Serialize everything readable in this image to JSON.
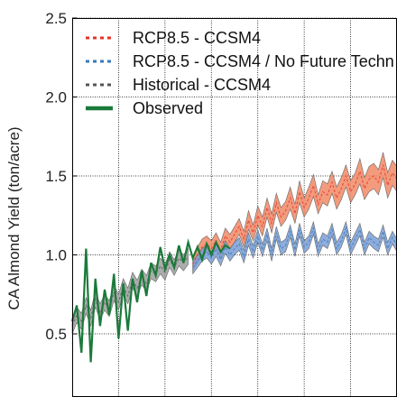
{
  "chart_data": {
    "type": "line",
    "title": "",
    "xlabel": "",
    "ylabel": "CA Almond Yield (ton/acre)",
    "ylim": [
      0.1,
      2.5
    ],
    "yticks": [
      "0.5",
      "1.0",
      "1.5",
      "2.0",
      "2.5"
    ],
    "yticks_values": [
      0.5,
      1.0,
      1.5,
      2.0,
      2.5
    ],
    "grid": true,
    "legend": "top-left",
    "series": [
      {
        "name": "RCP8.5 - CCSM4",
        "color": "#e8312a",
        "band_color": "#f08a66",
        "style": "dashed",
        "x": [
          2006,
          2007,
          2008,
          2009,
          2010,
          2011,
          2012,
          2013,
          2014,
          2015,
          2016,
          2017,
          2018,
          2019,
          2020,
          2021,
          2022,
          2023,
          2024,
          2025,
          2026,
          2027,
          2028,
          2029,
          2030,
          2031,
          2032,
          2033,
          2034,
          2035,
          2036,
          2037,
          2038,
          2039,
          2040,
          2041,
          2042,
          2043,
          2044,
          2045,
          2046,
          2047,
          2048,
          2049,
          2050
        ],
        "values": [
          0.94,
          1.0,
          1.05,
          1.07,
          1.04,
          1.09,
          1.03,
          1.12,
          1.08,
          1.13,
          1.18,
          1.1,
          1.22,
          1.14,
          1.25,
          1.18,
          1.3,
          1.2,
          1.33,
          1.24,
          1.28,
          1.36,
          1.26,
          1.4,
          1.3,
          1.36,
          1.44,
          1.32,
          1.4,
          1.38,
          1.46,
          1.36,
          1.42,
          1.5,
          1.4,
          1.45,
          1.53,
          1.42,
          1.48,
          1.5,
          1.46,
          1.57,
          1.44,
          1.52,
          1.48
        ],
        "lower": [
          0.9,
          0.95,
          1.0,
          1.02,
          0.99,
          1.04,
          0.98,
          1.07,
          1.03,
          1.08,
          1.13,
          1.05,
          1.16,
          1.09,
          1.19,
          1.12,
          1.24,
          1.14,
          1.27,
          1.18,
          1.22,
          1.29,
          1.2,
          1.33,
          1.24,
          1.29,
          1.37,
          1.26,
          1.33,
          1.31,
          1.39,
          1.29,
          1.35,
          1.43,
          1.33,
          1.38,
          1.45,
          1.35,
          1.4,
          1.42,
          1.38,
          1.49,
          1.36,
          1.44,
          1.4
        ],
        "upper": [
          0.98,
          1.05,
          1.1,
          1.12,
          1.09,
          1.14,
          1.08,
          1.17,
          1.13,
          1.18,
          1.23,
          1.15,
          1.28,
          1.19,
          1.31,
          1.24,
          1.36,
          1.26,
          1.39,
          1.3,
          1.34,
          1.43,
          1.32,
          1.47,
          1.36,
          1.43,
          1.51,
          1.38,
          1.47,
          1.45,
          1.53,
          1.43,
          1.49,
          1.57,
          1.47,
          1.52,
          1.61,
          1.49,
          1.56,
          1.58,
          1.54,
          1.65,
          1.52,
          1.6,
          1.56
        ]
      },
      {
        "name": "RCP8.5 - CCSM4 / No Future Techn",
        "color": "#3a78b8",
        "band_color": "#7a9fd6",
        "style": "dashed",
        "x": [
          2006,
          2007,
          2008,
          2009,
          2010,
          2011,
          2012,
          2013,
          2014,
          2015,
          2016,
          2017,
          2018,
          2019,
          2020,
          2021,
          2022,
          2023,
          2024,
          2025,
          2026,
          2027,
          2028,
          2029,
          2030,
          2031,
          2032,
          2033,
          2034,
          2035,
          2036,
          2037,
          2038,
          2039,
          2040,
          2041,
          2042,
          2043,
          2044,
          2045,
          2046,
          2047,
          2048,
          2049,
          2050
        ],
        "values": [
          0.92,
          0.96,
          1.0,
          1.02,
          0.98,
          1.03,
          0.97,
          1.05,
          1.0,
          1.04,
          1.07,
          0.99,
          1.1,
          1.02,
          1.12,
          1.03,
          1.13,
          1.0,
          1.14,
          1.04,
          1.06,
          1.15,
          1.03,
          1.16,
          1.05,
          1.08,
          1.17,
          1.03,
          1.1,
          1.08,
          1.16,
          1.04,
          1.09,
          1.17,
          1.04,
          1.1,
          1.16,
          1.04,
          1.11,
          1.08,
          1.06,
          1.15,
          1.04,
          1.11,
          1.06
        ],
        "lower": [
          0.88,
          0.92,
          0.96,
          0.98,
          0.94,
          0.99,
          0.93,
          1.01,
          0.96,
          1.0,
          1.03,
          0.95,
          1.06,
          0.98,
          1.08,
          0.99,
          1.09,
          0.96,
          1.1,
          1.0,
          1.02,
          1.11,
          0.99,
          1.12,
          1.01,
          1.04,
          1.13,
          0.99,
          1.06,
          1.04,
          1.12,
          1.0,
          1.05,
          1.13,
          1.0,
          1.06,
          1.12,
          1.0,
          1.07,
          1.04,
          1.02,
          1.11,
          1.0,
          1.07,
          1.02
        ],
        "upper": [
          0.96,
          1.0,
          1.04,
          1.06,
          1.02,
          1.07,
          1.01,
          1.09,
          1.04,
          1.08,
          1.11,
          1.03,
          1.14,
          1.06,
          1.16,
          1.07,
          1.17,
          1.04,
          1.18,
          1.08,
          1.1,
          1.19,
          1.07,
          1.2,
          1.09,
          1.12,
          1.21,
          1.07,
          1.14,
          1.12,
          1.2,
          1.08,
          1.13,
          1.21,
          1.08,
          1.14,
          1.2,
          1.08,
          1.15,
          1.12,
          1.1,
          1.19,
          1.08,
          1.15,
          1.1
        ]
      },
      {
        "name": "Historical - CCSM4",
        "color": "#555555",
        "band_color": "#9e9e9e",
        "style": "dashed",
        "x": [
          1980,
          1981,
          1982,
          1983,
          1984,
          1985,
          1986,
          1987,
          1988,
          1989,
          1990,
          1991,
          1992,
          1993,
          1994,
          1995,
          1996,
          1997,
          1998,
          1999,
          2000,
          2001,
          2002,
          2003,
          2004,
          2005
        ],
        "values": [
          0.55,
          0.62,
          0.58,
          0.68,
          0.6,
          0.72,
          0.64,
          0.7,
          0.66,
          0.76,
          0.7,
          0.8,
          0.74,
          0.84,
          0.79,
          0.86,
          0.82,
          0.9,
          0.88,
          0.93,
          0.89,
          0.97,
          0.92,
          0.98,
          0.95,
          0.99
        ],
        "lower": [
          0.5,
          0.57,
          0.53,
          0.63,
          0.55,
          0.67,
          0.59,
          0.65,
          0.61,
          0.71,
          0.65,
          0.75,
          0.69,
          0.79,
          0.74,
          0.81,
          0.77,
          0.85,
          0.83,
          0.88,
          0.84,
          0.92,
          0.87,
          0.93,
          0.9,
          0.94
        ],
        "upper": [
          0.6,
          0.67,
          0.63,
          0.73,
          0.65,
          0.77,
          0.69,
          0.75,
          0.71,
          0.81,
          0.75,
          0.85,
          0.79,
          0.89,
          0.84,
          0.91,
          0.87,
          0.95,
          0.93,
          0.98,
          0.94,
          1.02,
          0.97,
          1.03,
          1.0,
          1.04
        ]
      },
      {
        "name": "Observed",
        "color": "#1a7a3a",
        "style": "solid",
        "x": [
          1980,
          1981,
          1982,
          1983,
          1984,
          1985,
          1986,
          1987,
          1988,
          1989,
          1990,
          1991,
          1992,
          1993,
          1994,
          1995,
          1996,
          1997,
          1998,
          1999,
          2000,
          2001,
          2002,
          2003,
          2004,
          2005,
          2006,
          2007,
          2008,
          2009,
          2010,
          2011,
          2012,
          2013,
          2014
        ],
        "values": [
          0.58,
          0.68,
          0.38,
          1.04,
          0.32,
          0.85,
          0.55,
          0.78,
          0.62,
          0.88,
          0.47,
          0.82,
          0.52,
          0.85,
          0.7,
          0.9,
          0.74,
          0.95,
          0.87,
          1.05,
          0.91,
          1.0,
          0.92,
          1.06,
          0.95,
          1.08,
          0.98,
          1.05,
          0.97,
          1.07,
          1.0,
          1.08,
          1.02,
          1.06,
          1.04
        ]
      }
    ],
    "xlim": [
      1980,
      2050
    ]
  }
}
